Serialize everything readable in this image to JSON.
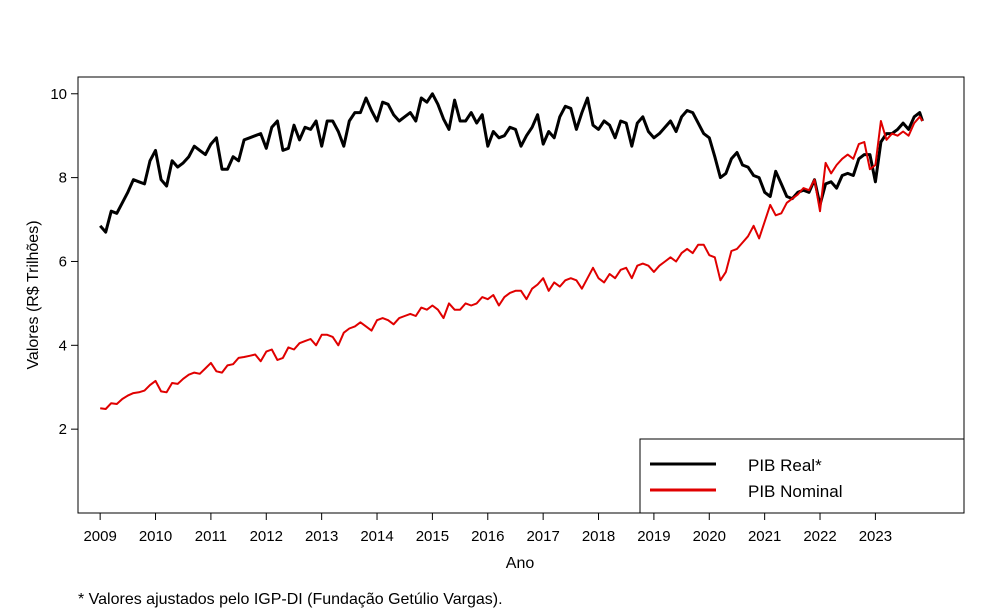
{
  "chart_data": {
    "type": "line",
    "xlabel": "Ano",
    "ylabel": "Valores (R$ Trilhões)",
    "xlim": [
      2008.6,
      2024.6
    ],
    "ylim": [
      0,
      10.4
    ],
    "xticks": [
      "2009",
      "2010",
      "2011",
      "2012",
      "2013",
      "2014",
      "2015",
      "2016",
      "2017",
      "2018",
      "2019",
      "2020",
      "2021",
      "2022",
      "2023"
    ],
    "yticks": [
      "2",
      "4",
      "6",
      "8",
      "10"
    ],
    "grid": false,
    "legend_position": "bottom-right",
    "series": [
      {
        "name": "PIB Real*",
        "color": "#000000",
        "points": [
          [
            2009.0,
            6.85
          ],
          [
            2009.1,
            6.7
          ],
          [
            2009.2,
            7.2
          ],
          [
            2009.3,
            7.15
          ],
          [
            2009.4,
            7.4
          ],
          [
            2009.5,
            7.65
          ],
          [
            2009.6,
            7.95
          ],
          [
            2009.7,
            7.9
          ],
          [
            2009.8,
            7.85
          ],
          [
            2009.9,
            8.4
          ],
          [
            2010.0,
            8.65
          ],
          [
            2010.1,
            7.95
          ],
          [
            2010.2,
            7.8
          ],
          [
            2010.3,
            8.4
          ],
          [
            2010.4,
            8.25
          ],
          [
            2010.5,
            8.35
          ],
          [
            2010.6,
            8.5
          ],
          [
            2010.7,
            8.75
          ],
          [
            2010.8,
            8.65
          ],
          [
            2010.9,
            8.55
          ],
          [
            2011.0,
            8.8
          ],
          [
            2011.1,
            8.95
          ],
          [
            2011.2,
            8.2
          ],
          [
            2011.3,
            8.2
          ],
          [
            2011.4,
            8.5
          ],
          [
            2011.5,
            8.4
          ],
          [
            2011.6,
            8.9
          ],
          [
            2011.7,
            8.95
          ],
          [
            2011.8,
            9.0
          ],
          [
            2011.9,
            9.05
          ],
          [
            2012.0,
            8.7
          ],
          [
            2012.1,
            9.2
          ],
          [
            2012.2,
            9.35
          ],
          [
            2012.3,
            8.65
          ],
          [
            2012.4,
            8.7
          ],
          [
            2012.5,
            9.25
          ],
          [
            2012.6,
            8.9
          ],
          [
            2012.7,
            9.2
          ],
          [
            2012.8,
            9.15
          ],
          [
            2012.9,
            9.35
          ],
          [
            2013.0,
            8.75
          ],
          [
            2013.1,
            9.35
          ],
          [
            2013.2,
            9.35
          ],
          [
            2013.3,
            9.1
          ],
          [
            2013.4,
            8.75
          ],
          [
            2013.5,
            9.35
          ],
          [
            2013.6,
            9.55
          ],
          [
            2013.7,
            9.55
          ],
          [
            2013.8,
            9.9
          ],
          [
            2013.9,
            9.6
          ],
          [
            2014.0,
            9.35
          ],
          [
            2014.1,
            9.8
          ],
          [
            2014.2,
            9.75
          ],
          [
            2014.3,
            9.5
          ],
          [
            2014.4,
            9.35
          ],
          [
            2014.5,
            9.45
          ],
          [
            2014.6,
            9.55
          ],
          [
            2014.7,
            9.35
          ],
          [
            2014.8,
            9.9
          ],
          [
            2014.9,
            9.8
          ],
          [
            2015.0,
            10.0
          ],
          [
            2015.1,
            9.75
          ],
          [
            2015.2,
            9.4
          ],
          [
            2015.3,
            9.15
          ],
          [
            2015.4,
            9.85
          ],
          [
            2015.5,
            9.35
          ],
          [
            2015.6,
            9.35
          ],
          [
            2015.7,
            9.55
          ],
          [
            2015.8,
            9.3
          ],
          [
            2015.9,
            9.5
          ],
          [
            2016.0,
            8.75
          ],
          [
            2016.1,
            9.1
          ],
          [
            2016.2,
            8.95
          ],
          [
            2016.3,
            9.0
          ],
          [
            2016.4,
            9.2
          ],
          [
            2016.5,
            9.15
          ],
          [
            2016.6,
            8.75
          ],
          [
            2016.7,
            9.0
          ],
          [
            2016.8,
            9.2
          ],
          [
            2016.9,
            9.5
          ],
          [
            2017.0,
            8.8
          ],
          [
            2017.1,
            9.1
          ],
          [
            2017.2,
            8.95
          ],
          [
            2017.3,
            9.45
          ],
          [
            2017.4,
            9.7
          ],
          [
            2017.5,
            9.65
          ],
          [
            2017.6,
            9.15
          ],
          [
            2017.7,
            9.55
          ],
          [
            2017.8,
            9.9
          ],
          [
            2017.9,
            9.25
          ],
          [
            2018.0,
            9.15
          ],
          [
            2018.1,
            9.35
          ],
          [
            2018.2,
            9.25
          ],
          [
            2018.3,
            8.95
          ],
          [
            2018.4,
            9.35
          ],
          [
            2018.5,
            9.3
          ],
          [
            2018.6,
            8.75
          ],
          [
            2018.7,
            9.3
          ],
          [
            2018.8,
            9.45
          ],
          [
            2018.9,
            9.1
          ],
          [
            2019.0,
            8.95
          ],
          [
            2019.1,
            9.05
          ],
          [
            2019.2,
            9.2
          ],
          [
            2019.3,
            9.35
          ],
          [
            2019.4,
            9.1
          ],
          [
            2019.5,
            9.45
          ],
          [
            2019.6,
            9.6
          ],
          [
            2019.7,
            9.55
          ],
          [
            2019.8,
            9.3
          ],
          [
            2019.9,
            9.05
          ],
          [
            2020.0,
            8.95
          ],
          [
            2020.1,
            8.5
          ],
          [
            2020.2,
            8.0
          ],
          [
            2020.3,
            8.1
          ],
          [
            2020.4,
            8.45
          ],
          [
            2020.5,
            8.6
          ],
          [
            2020.6,
            8.3
          ],
          [
            2020.7,
            8.25
          ],
          [
            2020.8,
            8.05
          ],
          [
            2020.9,
            8.0
          ],
          [
            2021.0,
            7.65
          ],
          [
            2021.1,
            7.55
          ],
          [
            2021.2,
            8.15
          ],
          [
            2021.3,
            7.85
          ],
          [
            2021.4,
            7.55
          ],
          [
            2021.5,
            7.5
          ],
          [
            2021.6,
            7.65
          ],
          [
            2021.7,
            7.7
          ],
          [
            2021.8,
            7.65
          ],
          [
            2021.9,
            7.95
          ],
          [
            2022.0,
            7.35
          ],
          [
            2022.1,
            7.85
          ],
          [
            2022.2,
            7.9
          ],
          [
            2022.3,
            7.75
          ],
          [
            2022.4,
            8.05
          ],
          [
            2022.5,
            8.1
          ],
          [
            2022.6,
            8.05
          ],
          [
            2022.7,
            8.45
          ],
          [
            2022.8,
            8.55
          ],
          [
            2022.9,
            8.55
          ],
          [
            2023.0,
            7.9
          ],
          [
            2023.1,
            8.85
          ],
          [
            2023.2,
            9.05
          ],
          [
            2023.3,
            9.05
          ],
          [
            2023.4,
            9.15
          ],
          [
            2023.5,
            9.3
          ],
          [
            2023.6,
            9.15
          ],
          [
            2023.7,
            9.45
          ],
          [
            2023.8,
            9.55
          ],
          [
            2023.85,
            9.35
          ]
        ]
      },
      {
        "name": "PIB Nominal",
        "color": "#e00000",
        "points": [
          [
            2009.0,
            2.5
          ],
          [
            2009.1,
            2.48
          ],
          [
            2009.2,
            2.62
          ],
          [
            2009.3,
            2.6
          ],
          [
            2009.4,
            2.72
          ],
          [
            2009.5,
            2.8
          ],
          [
            2009.6,
            2.86
          ],
          [
            2009.7,
            2.88
          ],
          [
            2009.8,
            2.92
          ],
          [
            2009.9,
            3.05
          ],
          [
            2010.0,
            3.15
          ],
          [
            2010.1,
            2.9
          ],
          [
            2010.2,
            2.88
          ],
          [
            2010.3,
            3.1
          ],
          [
            2010.4,
            3.08
          ],
          [
            2010.5,
            3.2
          ],
          [
            2010.6,
            3.3
          ],
          [
            2010.7,
            3.35
          ],
          [
            2010.8,
            3.32
          ],
          [
            2010.9,
            3.45
          ],
          [
            2011.0,
            3.58
          ],
          [
            2011.1,
            3.38
          ],
          [
            2011.2,
            3.35
          ],
          [
            2011.3,
            3.52
          ],
          [
            2011.4,
            3.55
          ],
          [
            2011.5,
            3.7
          ],
          [
            2011.6,
            3.72
          ],
          [
            2011.7,
            3.75
          ],
          [
            2011.8,
            3.78
          ],
          [
            2011.9,
            3.62
          ],
          [
            2012.0,
            3.85
          ],
          [
            2012.1,
            3.9
          ],
          [
            2012.2,
            3.65
          ],
          [
            2012.3,
            3.7
          ],
          [
            2012.4,
            3.95
          ],
          [
            2012.5,
            3.9
          ],
          [
            2012.6,
            4.05
          ],
          [
            2012.7,
            4.1
          ],
          [
            2012.8,
            4.15
          ],
          [
            2012.9,
            4.0
          ],
          [
            2013.0,
            4.25
          ],
          [
            2013.1,
            4.25
          ],
          [
            2013.2,
            4.2
          ],
          [
            2013.3,
            4.0
          ],
          [
            2013.4,
            4.3
          ],
          [
            2013.5,
            4.4
          ],
          [
            2013.6,
            4.45
          ],
          [
            2013.7,
            4.55
          ],
          [
            2013.8,
            4.45
          ],
          [
            2013.9,
            4.35
          ],
          [
            2014.0,
            4.6
          ],
          [
            2014.1,
            4.65
          ],
          [
            2014.2,
            4.6
          ],
          [
            2014.3,
            4.5
          ],
          [
            2014.4,
            4.65
          ],
          [
            2014.5,
            4.7
          ],
          [
            2014.6,
            4.75
          ],
          [
            2014.7,
            4.7
          ],
          [
            2014.8,
            4.9
          ],
          [
            2014.9,
            4.85
          ],
          [
            2015.0,
            4.95
          ],
          [
            2015.1,
            4.85
          ],
          [
            2015.2,
            4.65
          ],
          [
            2015.3,
            5.0
          ],
          [
            2015.4,
            4.85
          ],
          [
            2015.5,
            4.85
          ],
          [
            2015.6,
            5.0
          ],
          [
            2015.7,
            4.95
          ],
          [
            2015.8,
            5.0
          ],
          [
            2015.9,
            5.15
          ],
          [
            2016.0,
            5.1
          ],
          [
            2016.1,
            5.2
          ],
          [
            2016.2,
            4.95
          ],
          [
            2016.3,
            5.15
          ],
          [
            2016.4,
            5.25
          ],
          [
            2016.5,
            5.3
          ],
          [
            2016.6,
            5.3
          ],
          [
            2016.7,
            5.1
          ],
          [
            2016.8,
            5.35
          ],
          [
            2016.9,
            5.45
          ],
          [
            2017.0,
            5.6
          ],
          [
            2017.1,
            5.3
          ],
          [
            2017.2,
            5.5
          ],
          [
            2017.3,
            5.4
          ],
          [
            2017.4,
            5.55
          ],
          [
            2017.5,
            5.6
          ],
          [
            2017.6,
            5.55
          ],
          [
            2017.7,
            5.35
          ],
          [
            2017.8,
            5.6
          ],
          [
            2017.9,
            5.85
          ],
          [
            2018.0,
            5.6
          ],
          [
            2018.1,
            5.5
          ],
          [
            2018.2,
            5.7
          ],
          [
            2018.3,
            5.6
          ],
          [
            2018.4,
            5.8
          ],
          [
            2018.5,
            5.85
          ],
          [
            2018.6,
            5.6
          ],
          [
            2018.7,
            5.9
          ],
          [
            2018.8,
            5.95
          ],
          [
            2018.9,
            5.9
          ],
          [
            2019.0,
            5.75
          ],
          [
            2019.1,
            5.9
          ],
          [
            2019.2,
            6.0
          ],
          [
            2019.3,
            6.1
          ],
          [
            2019.4,
            6.0
          ],
          [
            2019.5,
            6.2
          ],
          [
            2019.6,
            6.3
          ],
          [
            2019.7,
            6.2
          ],
          [
            2019.8,
            6.4
          ],
          [
            2019.9,
            6.4
          ],
          [
            2020.0,
            6.15
          ],
          [
            2020.1,
            6.1
          ],
          [
            2020.2,
            5.55
          ],
          [
            2020.3,
            5.75
          ],
          [
            2020.4,
            6.25
          ],
          [
            2020.5,
            6.3
          ],
          [
            2020.6,
            6.45
          ],
          [
            2020.7,
            6.6
          ],
          [
            2020.8,
            6.85
          ],
          [
            2020.9,
            6.55
          ],
          [
            2021.0,
            6.95
          ],
          [
            2021.1,
            7.35
          ],
          [
            2021.2,
            7.1
          ],
          [
            2021.3,
            7.15
          ],
          [
            2021.4,
            7.4
          ],
          [
            2021.5,
            7.5
          ],
          [
            2021.6,
            7.6
          ],
          [
            2021.7,
            7.75
          ],
          [
            2021.8,
            7.7
          ],
          [
            2021.9,
            7.95
          ],
          [
            2022.0,
            7.2
          ],
          [
            2022.1,
            8.35
          ],
          [
            2022.2,
            8.1
          ],
          [
            2022.3,
            8.3
          ],
          [
            2022.4,
            8.45
          ],
          [
            2022.5,
            8.55
          ],
          [
            2022.6,
            8.45
          ],
          [
            2022.7,
            8.8
          ],
          [
            2022.8,
            8.85
          ],
          [
            2022.9,
            8.2
          ],
          [
            2023.0,
            8.3
          ],
          [
            2023.1,
            9.35
          ],
          [
            2023.2,
            8.9
          ],
          [
            2023.3,
            9.05
          ],
          [
            2023.4,
            9.0
          ],
          [
            2023.5,
            9.1
          ],
          [
            2023.6,
            9.0
          ],
          [
            2023.7,
            9.3
          ],
          [
            2023.8,
            9.45
          ],
          [
            2023.85,
            9.35
          ]
        ]
      }
    ],
    "legend": [
      "PIB Real*",
      "PIB Nominal"
    ]
  },
  "footnote": "* Valores ajustados pelo IGP-DI (Fundação Getúlio Vargas)."
}
